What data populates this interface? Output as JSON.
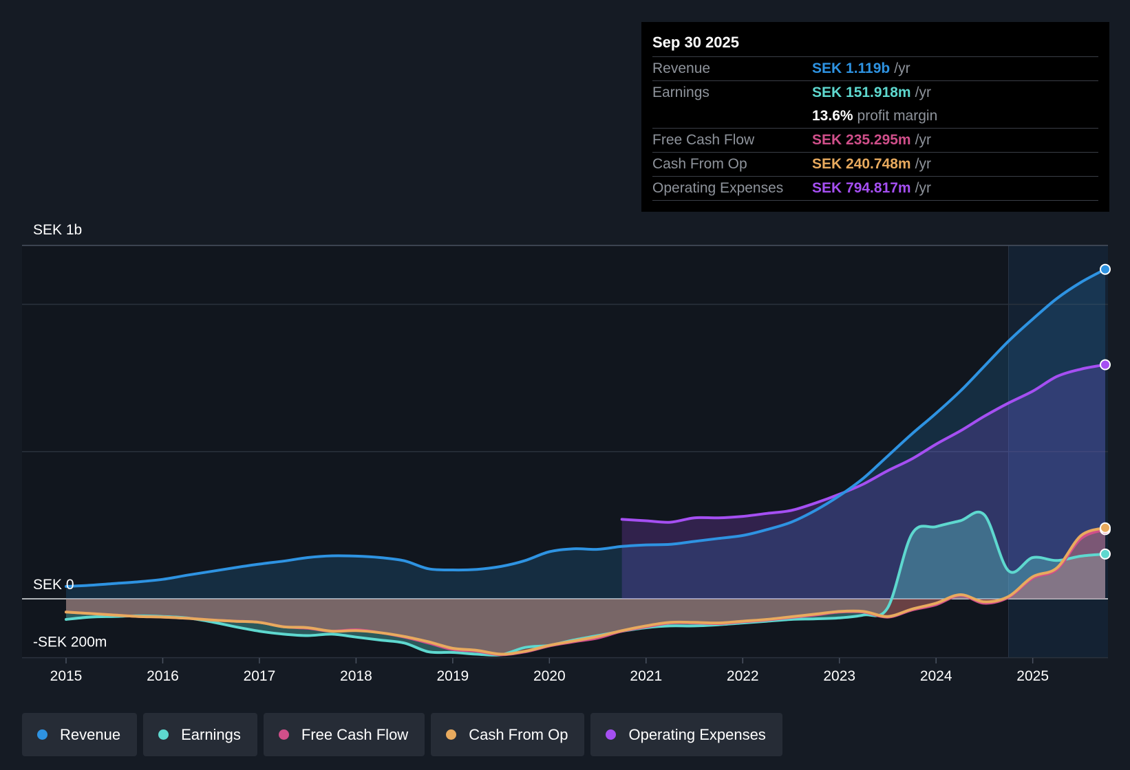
{
  "tooltip": {
    "date": "Sep 30 2025",
    "rows": [
      {
        "label": "Revenue",
        "value": "SEK 1.119b",
        "unit": "/yr",
        "color": "#2e93e2"
      },
      {
        "label": "Earnings",
        "value": "SEK 151.918m",
        "unit": "/yr",
        "color": "#5ed8cf"
      },
      {
        "label": "",
        "value": "13.6%",
        "unit": "profit margin",
        "color": "#ffffff"
      },
      {
        "label": "Free Cash Flow",
        "value": "SEK 235.295m",
        "unit": "/yr",
        "color": "#d04f8a"
      },
      {
        "label": "Cash From Op",
        "value": "SEK 240.748m",
        "unit": "/yr",
        "color": "#e8aa5e"
      },
      {
        "label": "Operating Expenses",
        "value": "SEK 794.817m",
        "unit": "/yr",
        "color": "#a54ff2"
      }
    ]
  },
  "legend": [
    {
      "label": "Revenue",
      "color": "#2e93e2"
    },
    {
      "label": "Earnings",
      "color": "#5ed8cf"
    },
    {
      "label": "Free Cash Flow",
      "color": "#d04f8a"
    },
    {
      "label": "Cash From Op",
      "color": "#e8aa5e"
    },
    {
      "label": "Operating Expenses",
      "color": "#a54ff2"
    }
  ],
  "chart_data": {
    "type": "area",
    "title": "",
    "xlabel": "",
    "ylabel": "",
    "currency": "SEK",
    "xlim": [
      2014.55,
      2025.75
    ],
    "ylim": [
      -200,
      1200
    ],
    "y_tick_labels": [
      {
        "value": 1000,
        "label": "SEK 1b"
      },
      {
        "value": 0,
        "label": "SEK 0"
      },
      {
        "value": -200,
        "label": "-SEK 200m"
      }
    ],
    "x_ticks": [
      2015,
      2016,
      2017,
      2018,
      2019,
      2020,
      2021,
      2022,
      2023,
      2024,
      2025
    ],
    "x_tick_labels": [
      "2015",
      "2016",
      "2017",
      "2018",
      "2019",
      "2020",
      "2021",
      "2022",
      "2023",
      "2024",
      "2025"
    ],
    "highlight_start": 2024.75,
    "series": [
      {
        "name": "Operating Expenses",
        "color": "#a54ff2",
        "points": [
          [
            2020.75,
            270
          ],
          [
            2021.0,
            265
          ],
          [
            2021.25,
            260
          ],
          [
            2021.5,
            275
          ],
          [
            2021.75,
            275
          ],
          [
            2022.0,
            280
          ],
          [
            2022.25,
            290
          ],
          [
            2022.5,
            300
          ],
          [
            2022.75,
            325
          ],
          [
            2023.0,
            355
          ],
          [
            2023.25,
            390
          ],
          [
            2023.5,
            435
          ],
          [
            2023.75,
            475
          ],
          [
            2024.0,
            525
          ],
          [
            2024.25,
            570
          ],
          [
            2024.5,
            620
          ],
          [
            2024.75,
            665
          ],
          [
            2025.0,
            705
          ],
          [
            2025.25,
            755
          ],
          [
            2025.5,
            780
          ],
          [
            2025.75,
            795
          ]
        ]
      },
      {
        "name": "Revenue",
        "color": "#2e93e2",
        "points": [
          [
            2015.0,
            42
          ],
          [
            2015.25,
            46
          ],
          [
            2015.5,
            52
          ],
          [
            2015.75,
            58
          ],
          [
            2016.0,
            66
          ],
          [
            2016.25,
            80
          ],
          [
            2016.5,
            93
          ],
          [
            2016.75,
            106
          ],
          [
            2017.0,
            118
          ],
          [
            2017.25,
            128
          ],
          [
            2017.5,
            140
          ],
          [
            2017.75,
            146
          ],
          [
            2018.0,
            145
          ],
          [
            2018.25,
            140
          ],
          [
            2018.5,
            129
          ],
          [
            2018.75,
            102
          ],
          [
            2019.0,
            98
          ],
          [
            2019.25,
            100
          ],
          [
            2019.5,
            110
          ],
          [
            2019.75,
            130
          ],
          [
            2020.0,
            160
          ],
          [
            2020.25,
            170
          ],
          [
            2020.5,
            168
          ],
          [
            2020.75,
            178
          ],
          [
            2021.0,
            183
          ],
          [
            2021.25,
            185
          ],
          [
            2021.5,
            195
          ],
          [
            2021.75,
            205
          ],
          [
            2022.0,
            215
          ],
          [
            2022.25,
            235
          ],
          [
            2022.5,
            260
          ],
          [
            2022.75,
            300
          ],
          [
            2023.0,
            350
          ],
          [
            2023.25,
            410
          ],
          [
            2023.5,
            485
          ],
          [
            2023.75,
            560
          ],
          [
            2024.0,
            630
          ],
          [
            2024.25,
            705
          ],
          [
            2024.5,
            790
          ],
          [
            2024.75,
            875
          ],
          [
            2025.0,
            950
          ],
          [
            2025.25,
            1020
          ],
          [
            2025.5,
            1075
          ],
          [
            2025.75,
            1119
          ]
        ]
      },
      {
        "name": "Earnings",
        "color": "#5ed8cf",
        "points": [
          [
            2015.0,
            -70
          ],
          [
            2015.25,
            -62
          ],
          [
            2015.5,
            -60
          ],
          [
            2015.75,
            -58
          ],
          [
            2016.0,
            -60
          ],
          [
            2016.25,
            -65
          ],
          [
            2016.5,
            -78
          ],
          [
            2016.75,
            -95
          ],
          [
            2017.0,
            -110
          ],
          [
            2017.25,
            -120
          ],
          [
            2017.5,
            -125
          ],
          [
            2017.75,
            -120
          ],
          [
            2018.0,
            -130
          ],
          [
            2018.25,
            -140
          ],
          [
            2018.5,
            -150
          ],
          [
            2018.75,
            -180
          ],
          [
            2019.0,
            -182
          ],
          [
            2019.25,
            -188
          ],
          [
            2019.5,
            -190
          ],
          [
            2019.75,
            -165
          ],
          [
            2020.0,
            -158
          ],
          [
            2020.25,
            -140
          ],
          [
            2020.5,
            -125
          ],
          [
            2020.75,
            -110
          ],
          [
            2021.0,
            -98
          ],
          [
            2021.25,
            -92
          ],
          [
            2021.5,
            -92
          ],
          [
            2021.75,
            -88
          ],
          [
            2022.0,
            -82
          ],
          [
            2022.25,
            -76
          ],
          [
            2022.5,
            -70
          ],
          [
            2022.75,
            -68
          ],
          [
            2023.0,
            -65
          ],
          [
            2023.25,
            -55
          ],
          [
            2023.5,
            -30
          ],
          [
            2023.75,
            220
          ],
          [
            2024.0,
            245
          ],
          [
            2024.25,
            265
          ],
          [
            2024.5,
            285
          ],
          [
            2024.75,
            95
          ],
          [
            2025.0,
            140
          ],
          [
            2025.25,
            130
          ],
          [
            2025.5,
            145
          ],
          [
            2025.75,
            152
          ]
        ]
      },
      {
        "name": "Free Cash Flow",
        "color": "#d04f8a",
        "points": [
          [
            2015.0,
            -45
          ],
          [
            2015.25,
            -50
          ],
          [
            2015.5,
            -55
          ],
          [
            2015.75,
            -60
          ],
          [
            2016.0,
            -62
          ],
          [
            2016.25,
            -66
          ],
          [
            2016.5,
            -72
          ],
          [
            2016.75,
            -76
          ],
          [
            2017.0,
            -80
          ],
          [
            2017.25,
            -95
          ],
          [
            2017.5,
            -100
          ],
          [
            2017.75,
            -110
          ],
          [
            2018.0,
            -105
          ],
          [
            2018.25,
            -115
          ],
          [
            2018.5,
            -130
          ],
          [
            2018.75,
            -150
          ],
          [
            2019.0,
            -172
          ],
          [
            2019.25,
            -178
          ],
          [
            2019.5,
            -190
          ],
          [
            2019.75,
            -180
          ],
          [
            2020.0,
            -160
          ],
          [
            2020.25,
            -146
          ],
          [
            2020.5,
            -133
          ],
          [
            2020.75,
            -110
          ],
          [
            2021.0,
            -95
          ],
          [
            2021.25,
            -82
          ],
          [
            2021.5,
            -82
          ],
          [
            2021.75,
            -84
          ],
          [
            2022.0,
            -78
          ],
          [
            2022.25,
            -72
          ],
          [
            2022.5,
            -63
          ],
          [
            2022.75,
            -55
          ],
          [
            2023.0,
            -45
          ],
          [
            2023.25,
            -45
          ],
          [
            2023.5,
            -62
          ],
          [
            2023.75,
            -38
          ],
          [
            2024.0,
            -20
          ],
          [
            2024.25,
            12
          ],
          [
            2024.5,
            -15
          ],
          [
            2024.75,
            5
          ],
          [
            2025.0,
            70
          ],
          [
            2025.25,
            100
          ],
          [
            2025.5,
            205
          ],
          [
            2025.75,
            235
          ]
        ]
      },
      {
        "name": "Cash From Op",
        "color": "#e8aa5e",
        "points": [
          [
            2015.0,
            -45
          ],
          [
            2015.25,
            -50
          ],
          [
            2015.5,
            -55
          ],
          [
            2015.75,
            -60
          ],
          [
            2016.0,
            -62
          ],
          [
            2016.25,
            -66
          ],
          [
            2016.5,
            -72
          ],
          [
            2016.75,
            -76
          ],
          [
            2017.0,
            -80
          ],
          [
            2017.25,
            -95
          ],
          [
            2017.5,
            -98
          ],
          [
            2017.75,
            -110
          ],
          [
            2018.0,
            -108
          ],
          [
            2018.25,
            -115
          ],
          [
            2018.5,
            -128
          ],
          [
            2018.75,
            -146
          ],
          [
            2019.0,
            -168
          ],
          [
            2019.25,
            -175
          ],
          [
            2019.5,
            -188
          ],
          [
            2019.75,
            -178
          ],
          [
            2020.0,
            -158
          ],
          [
            2020.25,
            -143
          ],
          [
            2020.5,
            -128
          ],
          [
            2020.75,
            -108
          ],
          [
            2021.0,
            -92
          ],
          [
            2021.25,
            -80
          ],
          [
            2021.5,
            -80
          ],
          [
            2021.75,
            -82
          ],
          [
            2022.0,
            -76
          ],
          [
            2022.25,
            -70
          ],
          [
            2022.5,
            -61
          ],
          [
            2022.75,
            -52
          ],
          [
            2023.0,
            -43
          ],
          [
            2023.25,
            -43
          ],
          [
            2023.5,
            -60
          ],
          [
            2023.75,
            -35
          ],
          [
            2024.0,
            -15
          ],
          [
            2024.25,
            14
          ],
          [
            2024.5,
            -10
          ],
          [
            2024.75,
            8
          ],
          [
            2025.0,
            75
          ],
          [
            2025.25,
            105
          ],
          [
            2025.5,
            215
          ],
          [
            2025.75,
            241
          ]
        ]
      }
    ]
  }
}
